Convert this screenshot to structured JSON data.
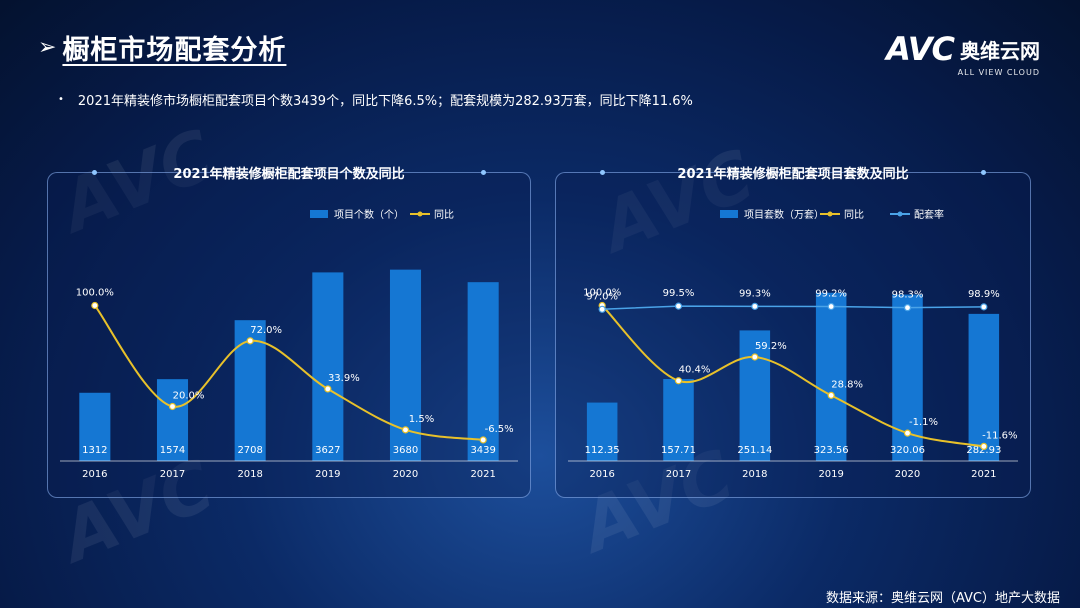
{
  "page": {
    "title": "橱柜市场配套分析",
    "summary": "2021年精装修市场橱柜配套项目个数3439个，同比下降6.5%；配套规模为282.93万套，同比下降11.6%",
    "source": "数据来源：奥维云网（AVC）地产大数据"
  },
  "brand": {
    "logo": "AVC",
    "name": "奥维云网",
    "sub": "ALL VIEW CLOUD"
  },
  "colors": {
    "bar": "#1577d3",
    "yoy": "#e8c12a",
    "rate": "#4aa3e8"
  },
  "chart_data": [
    {
      "type": "bar",
      "title": "2021年精装修橱柜配套项目个数及同比",
      "categories": [
        "2016",
        "2017",
        "2018",
        "2019",
        "2020",
        "2021"
      ],
      "series": [
        {
          "name": "项目个数（个）",
          "type": "bar",
          "values": [
            1312,
            1574,
            2708,
            3627,
            3680,
            3439
          ],
          "labels": [
            "1312",
            "1574",
            "2708",
            "3627",
            "3680",
            "3439"
          ]
        },
        {
          "name": "同比",
          "type": "line",
          "values": [
            100.0,
            20.0,
            72.0,
            33.9,
            1.5,
            -6.5
          ],
          "labels": [
            "100.0%",
            "20.0%",
            "72.0%",
            "33.9%",
            "1.5%",
            "-6.5%"
          ]
        }
      ],
      "bar_ylim": [
        0,
        4000
      ],
      "line_ylim": [
        -20,
        140
      ]
    },
    {
      "type": "bar",
      "title": "2021年精装修橱柜配套项目套数及同比",
      "categories": [
        "2016",
        "2017",
        "2018",
        "2019",
        "2020",
        "2021"
      ],
      "series": [
        {
          "name": "项目套数（万套）",
          "type": "bar",
          "values": [
            112.35,
            157.71,
            251.14,
            323.56,
            320.06,
            282.93
          ],
          "labels": [
            "112.35",
            "157.71",
            "251.14",
            "323.56",
            "320.06",
            "282.93"
          ]
        },
        {
          "name": "同比",
          "type": "line",
          "values": [
            100.0,
            40.4,
            59.2,
            28.8,
            -1.1,
            -11.6
          ],
          "labels": [
            "100.0%",
            "40.4%",
            "59.2%",
            "28.8%",
            "-1.1%",
            "-11.6%"
          ]
        },
        {
          "name": "配套率",
          "type": "line",
          "values": [
            97.0,
            99.5,
            99.3,
            99.2,
            98.3,
            98.9
          ],
          "labels": [
            "97.0%",
            "99.5%",
            "99.3%",
            "99.2%",
            "98.3%",
            "98.9%"
          ]
        }
      ],
      "bar_ylim": [
        0,
        400
      ],
      "line_ylim": [
        -20,
        140
      ]
    }
  ]
}
